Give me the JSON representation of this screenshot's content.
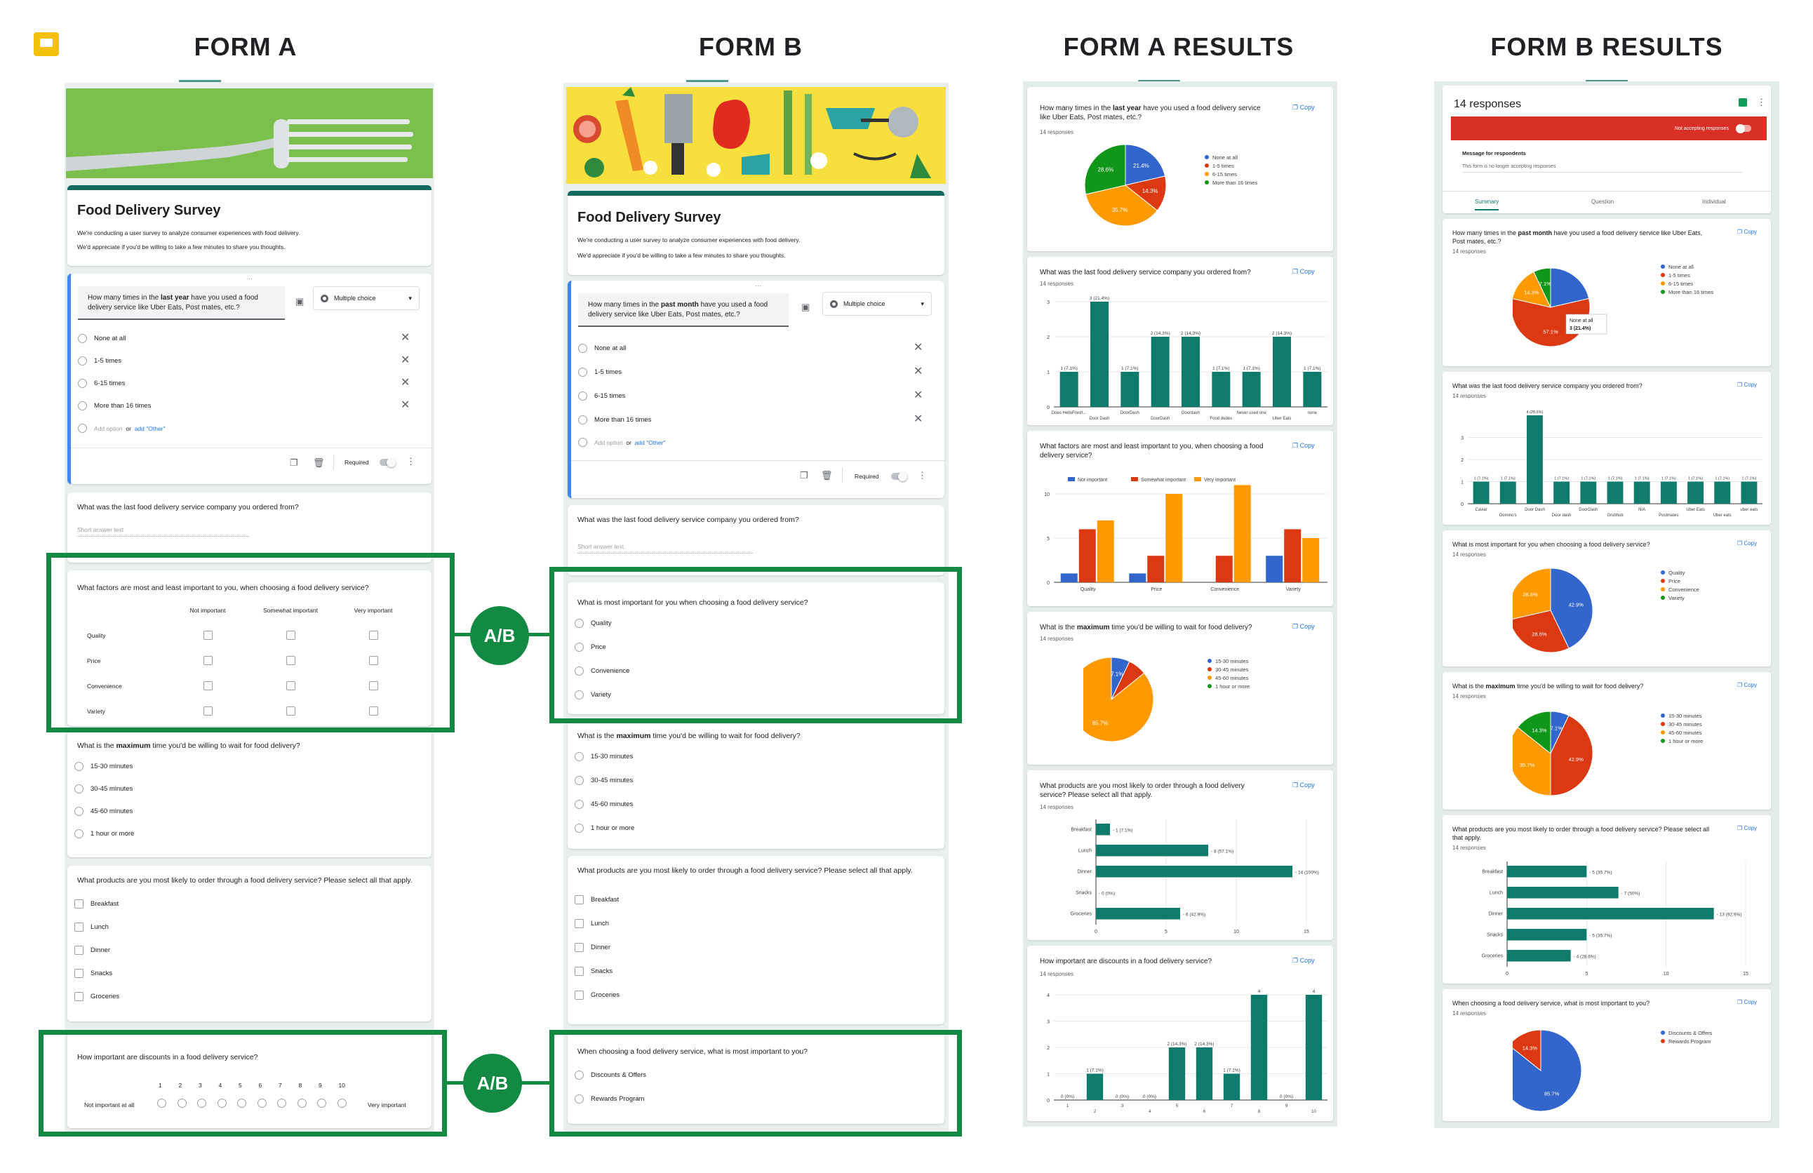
{
  "headers": {
    "form_a": "FORM A",
    "form_b": "FORM B",
    "results_a": "FORM A RESULTS",
    "results_b": "FORM B RESULTS"
  },
  "ab_label": "A/B",
  "form_a": {
    "title": "Food Delivery Survey",
    "desc1": "We're conducting a user survey to analyze consumer experiences with food delivery.",
    "desc2": "We'd appreciate if you'd be willing to take a few minutes to share you thoughts.",
    "q1": {
      "pre": "How many times in the ",
      "bold": "last year",
      "post": " have you used a food delivery service like Uber Eats, Post mates, etc.?",
      "type": "Multiple choice",
      "options": [
        "None at all",
        "1-5 times",
        "6-15 times",
        "More than 16 times"
      ],
      "add_option": "Add option",
      "or": "or",
      "add_other": "add \"Other\"",
      "required": "Required"
    },
    "q2": {
      "title": "What was the last food delivery service company you ordered from?",
      "placeholder": "Short answer text"
    },
    "q3": {
      "title": "What factors are most and least important to you, when choosing a food delivery service?",
      "cols": [
        "Not important",
        "Somewhat important",
        "Very important"
      ],
      "rows": [
        "Quality",
        "Price",
        "Convenience",
        "Variety"
      ]
    },
    "q4": {
      "pre": "What is the ",
      "bold": "maximum",
      "post": " time you'd be willing to wait for food delivery?",
      "options": [
        "15-30 minutes",
        "30-45 minutes",
        "45-60 minutes",
        "1 hour or more"
      ]
    },
    "q5": {
      "title": "What products are you most likely to order through a food delivery service? Please select all that apply.",
      "options": [
        "Breakfast",
        "Lunch",
        "Dinner",
        "Snacks",
        "Groceries"
      ]
    },
    "q6": {
      "title": "How important are discounts in a food delivery service?",
      "scale": [
        "1",
        "2",
        "3",
        "4",
        "5",
        "6",
        "7",
        "8",
        "9",
        "10"
      ],
      "low": "Not important at all",
      "high": "Very important"
    }
  },
  "form_b": {
    "title": "Food Delivery Survey",
    "desc1": "We're conducting a user survey to analyze consumer experiences with food delivery.",
    "desc2": "We'd appreciate if you'd be willing to take a few minutes to share you thoughts.",
    "q1": {
      "pre": "How many times in the ",
      "bold": "past month",
      "post": " have you used a food delivery service like Uber Eats, Post mates, etc.?",
      "type": "Multiple choice",
      "options": [
        "None at all",
        "1-5 times",
        "6-15 times",
        "More than 16 times"
      ],
      "add_option": "Add option",
      "or": "or",
      "add_other": "add \"Other\"",
      "required": "Required"
    },
    "q2": {
      "title": "What was the last food delivery service company you ordered from?",
      "placeholder": "Short answer text"
    },
    "q3": {
      "title": "What is most important for you when choosing a food delivery service?",
      "options": [
        "Quality",
        "Price",
        "Convenience",
        "Variety"
      ]
    },
    "q4": {
      "pre": "What is the ",
      "bold": "maximum",
      "post": " time you'd be willing to wait for food delivery?",
      "options": [
        "15-30 minutes",
        "30-45 minutes",
        "45-60 minutes",
        "1 hour or more"
      ]
    },
    "q5": {
      "title": "What products are you most likely to order through a food delivery service? Please select all that apply.",
      "options": [
        "Breakfast",
        "Lunch",
        "Dinner",
        "Snacks",
        "Groceries"
      ]
    },
    "q6": {
      "title": "When choosing a food delivery service, what is most important to you?",
      "options": [
        "Discounts & Offers",
        "Rewards Program"
      ]
    }
  },
  "results_a": {
    "copy": "Copy",
    "r1": {
      "pre": "How many times in the ",
      "bold": "last year",
      "post": " have you used a food delivery service like Uber Eats, Post mates, etc.?",
      "n": "14 responses"
    },
    "r2": {
      "title": "What was the last food delivery service company you ordered from?",
      "n": "14 responses"
    },
    "r3": {
      "title": "What factors are most and least important to you, when choosing a food delivery service?",
      "n": ""
    },
    "r4": {
      "pre": "What is the ",
      "bold": "maximum",
      "post": " time you'd be willing to wait for food delivery?",
      "n": "14 responses"
    },
    "r5": {
      "title": "What products are you most likely to order through a food delivery service? Please select all that apply.",
      "n": "14 responses"
    },
    "r6": {
      "title": "How important are discounts in a food delivery service?",
      "n": "14 responses"
    }
  },
  "results_b": {
    "copy": "Copy",
    "responses": "14 responses",
    "not_accepting": "Not accepting responses",
    "message_label": "Message for respondents",
    "message_text": "This form is no longer accepting responses",
    "tabs": [
      "Summary",
      "Question",
      "Individual"
    ],
    "r1": {
      "pre": "How many times in the ",
      "bold": "past month",
      "post": " have you used a food delivery service like Uber Eats, Post mates, etc.?",
      "n": "14 responses"
    },
    "r2": {
      "title": "What was the last food delivery service company you ordered from?",
      "n": "14 responses"
    },
    "r3": {
      "title": "What is most important for you when choosing a food delivery service?",
      "n": "14 responses"
    },
    "r4": {
      "pre": "What is the ",
      "bold": "maximum",
      "post": " time you'd be willing to wait for food delivery?",
      "n": "14 responses"
    },
    "r5": {
      "title": "What products are you most likely to order through a food delivery service? Please select all that apply.",
      "n": "14 responses"
    },
    "r6": {
      "title": "When choosing a food delivery service, what is most important to you?",
      "n": "14 responses"
    }
  },
  "colors": {
    "blue": "#3366cc",
    "red": "#dc3912",
    "orange": "#ff9900",
    "green": "#109618",
    "teal": "#0f7b6c",
    "formgreen": "#138a43"
  },
  "chart_data": [
    {
      "id": "a1",
      "type": "pie",
      "legend": [
        "None at all",
        "1-5 times",
        "6-15 times",
        "More than 16 times"
      ],
      "values": [
        21.4,
        14.3,
        35.7,
        28.6
      ],
      "labels": [
        "21.4%",
        "14.3%",
        "35.7%",
        "28.6%"
      ]
    },
    {
      "id": "a2",
      "type": "bar",
      "categories": [
        "Does HelloFresh...",
        "Door Dash",
        "DoorDash",
        "DoorDash",
        "Doordash",
        "Food dudes",
        "Never used one",
        "Uber Eats",
        "none"
      ],
      "values": [
        1,
        3,
        1,
        2,
        2,
        1,
        1,
        2,
        1
      ],
      "labels": [
        "1 (7.1%)",
        "3 (21.4%)",
        "1 (7.1%)",
        "2 (14.3%)",
        "2 (14.3%)",
        "1 (7.1%)",
        "1 (7.1%)",
        "2 (14.3%)",
        "1 (7.1%)"
      ],
      "ylim": [
        0,
        3
      ],
      "yticks": [
        "0",
        "1",
        "2",
        "3"
      ]
    },
    {
      "id": "a3",
      "type": "bar",
      "categories": [
        "Quality",
        "Price",
        "Convenience",
        "Variety"
      ],
      "series": [
        {
          "name": "Not important",
          "values": [
            1,
            1,
            0,
            3
          ]
        },
        {
          "name": "Somewhat important",
          "values": [
            6,
            3,
            3,
            6
          ]
        },
        {
          "name": "Very important",
          "values": [
            7,
            10,
            11,
            5
          ]
        }
      ],
      "ylim": [
        0,
        10
      ],
      "yticks": [
        "0",
        "5",
        "10"
      ]
    },
    {
      "id": "a4",
      "type": "pie",
      "legend": [
        "15-30 minutes",
        "30-45 minutes",
        "45-60 minutes",
        "1 hour or more"
      ],
      "values": [
        7.1,
        7.1,
        85.7,
        0
      ],
      "labels": [
        "7.1%",
        "",
        "85.7%",
        ""
      ]
    },
    {
      "id": "a5",
      "type": "hbar",
      "categories": [
        "Breakfast",
        "Lunch",
        "Dinner",
        "Snacks",
        "Groceries"
      ],
      "values": [
        1,
        8,
        14,
        0,
        6
      ],
      "labels": [
        "1 (7.1%)",
        "8 (57.1%)",
        "14 (100%)",
        "0 (0%)",
        "6 (42.9%)"
      ],
      "xlim": [
        0,
        15
      ],
      "xticks": [
        "0",
        "5",
        "10",
        "15"
      ]
    },
    {
      "id": "a6",
      "type": "bar",
      "categories": [
        "1",
        "2",
        "3",
        "4",
        "5",
        "6",
        "7",
        "8",
        "9",
        "10"
      ],
      "values": [
        0,
        1,
        0,
        0,
        2,
        2,
        1,
        4,
        0,
        4
      ],
      "labels": [
        "0 (0%)",
        "1 (7.1%)",
        "0 (0%)",
        "0 (0%)",
        "2 (14.3%)",
        "2 (14.3%)",
        "1 (7.1%)",
        "4",
        "0 (0%)",
        "4"
      ],
      "ylim": [
        0,
        4
      ],
      "yticks": [
        "0",
        "1",
        "2",
        "3",
        "4"
      ]
    },
    {
      "id": "b1",
      "type": "pie",
      "legend": [
        "None at all",
        "1-5 times",
        "6-15 times",
        "More than 16 times"
      ],
      "values": [
        21.4,
        57.1,
        14.3,
        7.1
      ],
      "labels": [
        "",
        "57.1%",
        "14.3%",
        "7.1%"
      ],
      "tooltip": [
        "None at all",
        "3 (21.4%)"
      ]
    },
    {
      "id": "b2",
      "type": "bar",
      "categories": [
        "Caviar",
        "Domino's",
        "Door Dash",
        "Door dash",
        "DoorDash",
        "Grubhub",
        "N/A",
        "Postmates",
        "Uber Eats",
        "Uber eats",
        "uber eats"
      ],
      "values": [
        1,
        1,
        4,
        1,
        1,
        1,
        1,
        1,
        1,
        1,
        1
      ],
      "labels": [
        "1 (7.1%)",
        "1 (7.1%)",
        "4 (28.6%)",
        "1 (7.1%)",
        "1 (7.1%)",
        "1 (7.1%)",
        "1 (7.1%)",
        "1 (7.1%)",
        "1 (7.1%)",
        "1 (7.1%)",
        "1 (7.1%)"
      ],
      "ylim": [
        0,
        4
      ],
      "yticks": [
        "0",
        "1",
        "2",
        "3"
      ]
    },
    {
      "id": "b3",
      "type": "pie",
      "legend": [
        "Quality",
        "Price",
        "Convenience",
        "Variety"
      ],
      "values": [
        42.9,
        28.6,
        28.6,
        0
      ],
      "labels": [
        "42.9%",
        "28.6%",
        "28.6%",
        ""
      ]
    },
    {
      "id": "b4",
      "type": "pie",
      "legend": [
        "15-30 minutes",
        "30-45 minutes",
        "45-60 minutes",
        "1 hour or more"
      ],
      "values": [
        7.1,
        42.9,
        35.7,
        14.3
      ],
      "labels": [
        "7.1%",
        "42.9%",
        "35.7%",
        "14.3%"
      ]
    },
    {
      "id": "b5",
      "type": "hbar",
      "categories": [
        "Breakfast",
        "Lunch",
        "Dinner",
        "Snacks",
        "Groceries"
      ],
      "values": [
        5,
        7,
        13,
        5,
        4
      ],
      "labels": [
        "5 (35.7%)",
        "7 (50%)",
        "13 (92.9%)",
        "5 (35.7%)",
        "4 (28.6%)"
      ],
      "xlim": [
        0,
        15
      ],
      "xticks": [
        "0",
        "5",
        "10",
        "15"
      ]
    },
    {
      "id": "b6",
      "type": "pie",
      "legend": [
        "Discounts & Offers",
        "Rewards Program"
      ],
      "values": [
        85.7,
        14.3
      ],
      "labels": [
        "85.7%",
        "14.3%"
      ]
    }
  ]
}
